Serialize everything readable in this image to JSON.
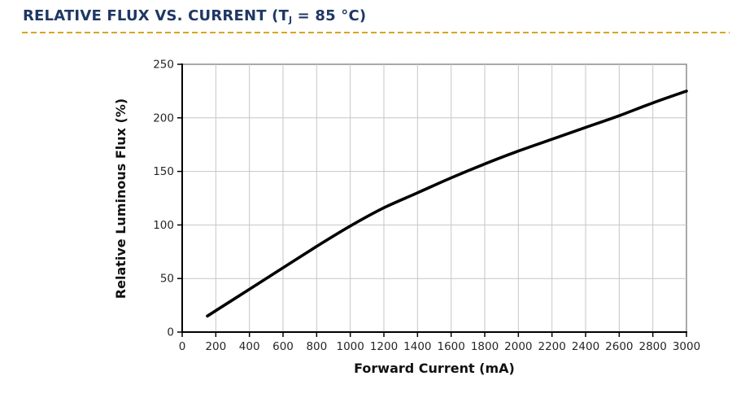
{
  "header": {
    "title_prefix": "RELATIVE FLUX VS. CURRENT (T",
    "title_sub": "J",
    "title_suffix": " = 85 °C)"
  },
  "colors": {
    "title_text": "#1f3864",
    "dashed_rule": "#d9a521",
    "plot_border": "#8c8c8c",
    "gridline": "#c6c6c6",
    "axis_line": "#000000",
    "curve": "#000000",
    "tick_text": "#262626"
  },
  "chart_data": {
    "type": "line",
    "title": "RELATIVE FLUX VS. CURRENT (TJ = 85 °C)",
    "xlabel": "Forward Current (mA)",
    "ylabel": "Relative Luminous Flux (%)",
    "xlim": [
      0,
      3000
    ],
    "ylim": [
      0,
      250
    ],
    "x_ticks": [
      0,
      200,
      400,
      600,
      800,
      1000,
      1200,
      1400,
      1600,
      1800,
      2000,
      2200,
      2400,
      2600,
      2800,
      3000
    ],
    "y_ticks": [
      0,
      50,
      100,
      150,
      200,
      250
    ],
    "grid": true,
    "legend": false,
    "series": [
      {
        "name": "relative-luminous-flux",
        "x": [
          150,
          200,
          400,
          600,
          800,
          1000,
          1200,
          1400,
          1600,
          1800,
          2000,
          2200,
          2400,
          2600,
          2800,
          3000
        ],
        "y": [
          15,
          20,
          40,
          60,
          80,
          99,
          116,
          130,
          144,
          157,
          169,
          180,
          191,
          202,
          214,
          225
        ]
      }
    ]
  }
}
